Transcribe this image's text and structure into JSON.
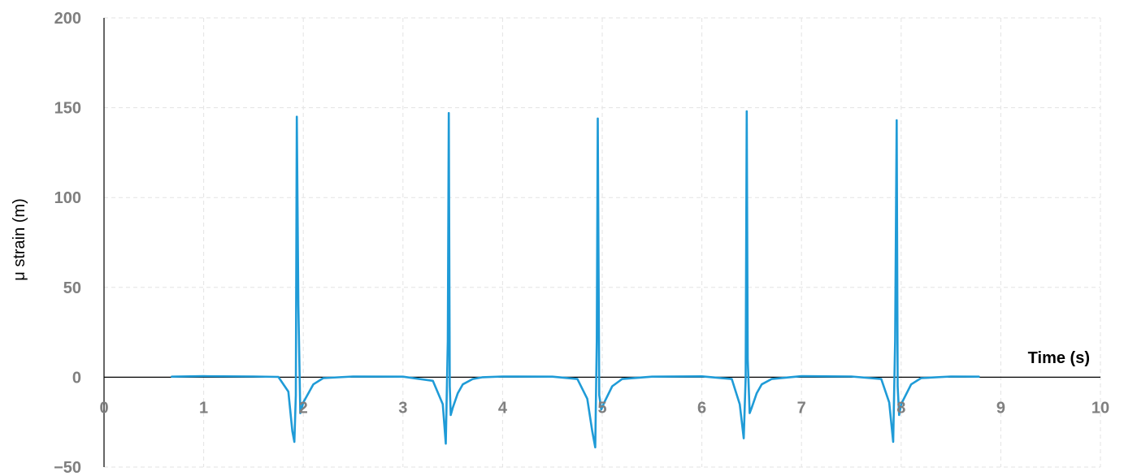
{
  "chart_data": {
    "type": "line",
    "title": "",
    "xlabel": "Time (s)",
    "ylabel": "μ strain (m)",
    "xlim": [
      0,
      10
    ],
    "ylim": [
      -50,
      200
    ],
    "xticks": [
      "0",
      "1",
      "2",
      "3",
      "4",
      "5",
      "6",
      "7",
      "8",
      "9",
      "10"
    ],
    "yticks": [
      "200",
      "150",
      "100",
      "50",
      "0",
      "−50"
    ],
    "ytick_values": [
      200,
      150,
      100,
      50,
      0,
      -50
    ],
    "grid": true,
    "legend": "none",
    "series": [
      {
        "color": "#1f9bd7",
        "x": [
          0.68,
          1.0,
          1.5,
          1.75,
          1.85,
          1.89,
          1.91,
          1.925,
          1.935,
          1.95,
          1.97,
          2.0,
          2.1,
          2.2,
          2.5,
          3.0,
          3.3,
          3.4,
          3.43,
          3.45,
          3.46,
          3.47,
          3.48,
          3.5,
          3.55,
          3.6,
          3.7,
          3.8,
          4.0,
          4.5,
          4.75,
          4.85,
          4.9,
          4.93,
          4.945,
          4.955,
          4.97,
          4.99,
          5.02,
          5.1,
          5.2,
          5.5,
          6.0,
          6.3,
          6.38,
          6.42,
          6.44,
          6.45,
          6.46,
          6.48,
          6.5,
          6.55,
          6.6,
          6.7,
          7.0,
          7.5,
          7.8,
          7.88,
          7.92,
          7.94,
          7.955,
          7.965,
          7.98,
          8.0,
          8.1,
          8.2,
          8.5,
          8.78
        ],
        "y": [
          0.3,
          0.6,
          0.4,
          0.2,
          -8,
          -30,
          -36,
          -10,
          145,
          40,
          -20,
          -14,
          -4,
          -0.5,
          0.4,
          0.3,
          -2,
          -15,
          -37,
          20,
          147,
          -5,
          -21,
          -17,
          -9,
          -4,
          -1,
          0,
          0.4,
          0.3,
          -1,
          -12,
          -30,
          -39,
          20,
          144,
          -10,
          -18,
          -14,
          -5,
          -1,
          0.3,
          0.5,
          -1,
          -15,
          -34,
          0,
          148,
          10,
          -20,
          -17,
          -9,
          -4,
          -1,
          0.6,
          0.4,
          -1,
          -14,
          -36,
          20,
          143,
          -5,
          -21,
          -15,
          -4,
          -0.5,
          0.4,
          0.3
        ]
      }
    ]
  }
}
